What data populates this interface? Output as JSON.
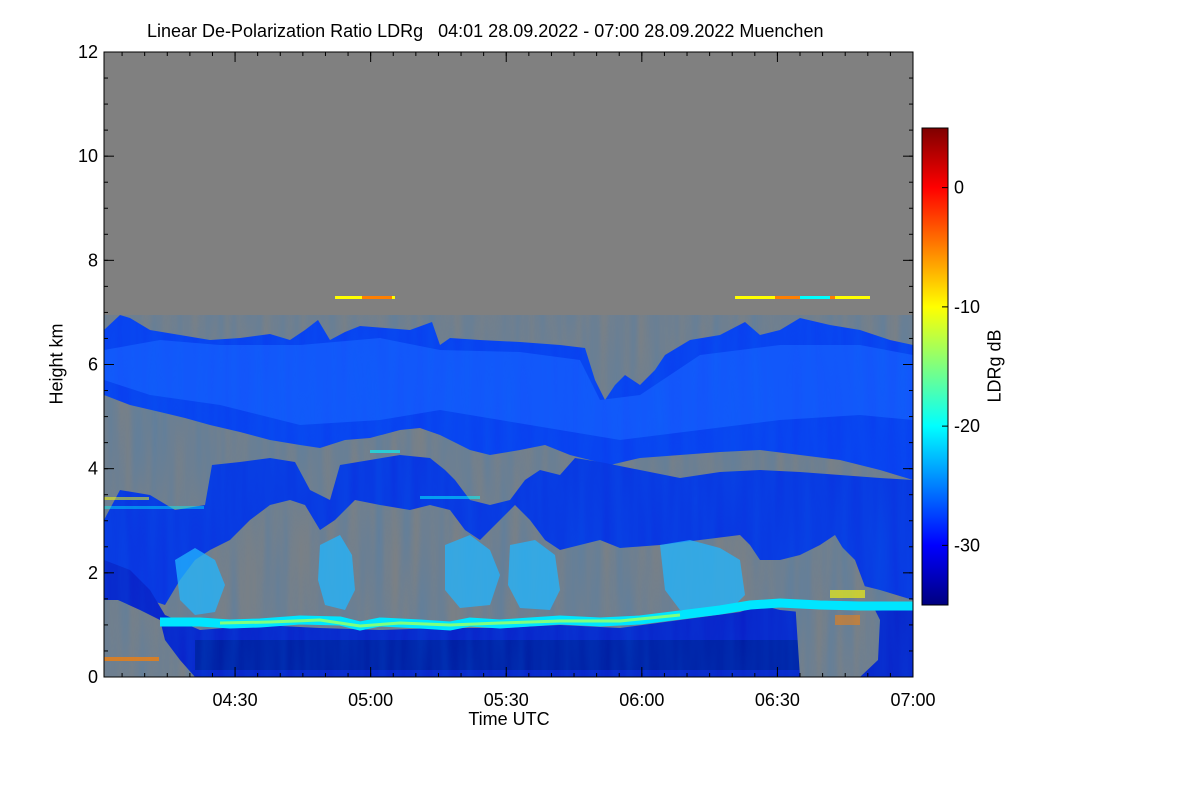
{
  "chart_data": {
    "type": "heatmap",
    "title": "Linear De-Polarization Ratio LDRg   04:01 28.09.2022 - 07:00 28.09.2022 Muenchen",
    "xlabel": "Time UTC",
    "ylabel": "Height km",
    "x_range_minutes": [
      241,
      420
    ],
    "x_ticks": [
      {
        "minutes": 270,
        "label": "04:30"
      },
      {
        "minutes": 300,
        "label": "05:00"
      },
      {
        "minutes": 330,
        "label": "05:30"
      },
      {
        "minutes": 360,
        "label": "06:00"
      },
      {
        "minutes": 390,
        "label": "06:30"
      },
      {
        "minutes": 420,
        "label": "07:00"
      }
    ],
    "ylim": [
      0,
      12
    ],
    "y_ticks": [
      {
        "value": 0,
        "label": "0"
      },
      {
        "value": 2,
        "label": "2"
      },
      {
        "value": 4,
        "label": "4"
      },
      {
        "value": 6,
        "label": "6"
      },
      {
        "value": 8,
        "label": "8"
      },
      {
        "value": 10,
        "label": "10"
      },
      {
        "value": 12,
        "label": "12"
      }
    ],
    "colorbar": {
      "label": "LDRg dB",
      "range": [
        -35,
        5
      ],
      "ticks": [
        {
          "value": 0,
          "label": "0"
        },
        {
          "value": -10,
          "label": "-10"
        },
        {
          "value": -20,
          "label": "-20"
        },
        {
          "value": -30,
          "label": "-30"
        }
      ],
      "colormap": [
        "#00007f",
        "#0000ff",
        "#007fff",
        "#00ffff",
        "#7fff7f",
        "#ffff00",
        "#ff7f00",
        "#ff0000",
        "#7f0000"
      ]
    },
    "background_color": "#808080",
    "features": {
      "upper_cloud_top_km": 6.5,
      "upper_cloud_base_km": 4.8,
      "lower_cloud_top_km": 4.0,
      "melting_layer_km": 1.1,
      "melting_layer_ldr_db": -20,
      "cloud_ldr_db": -30
    }
  }
}
